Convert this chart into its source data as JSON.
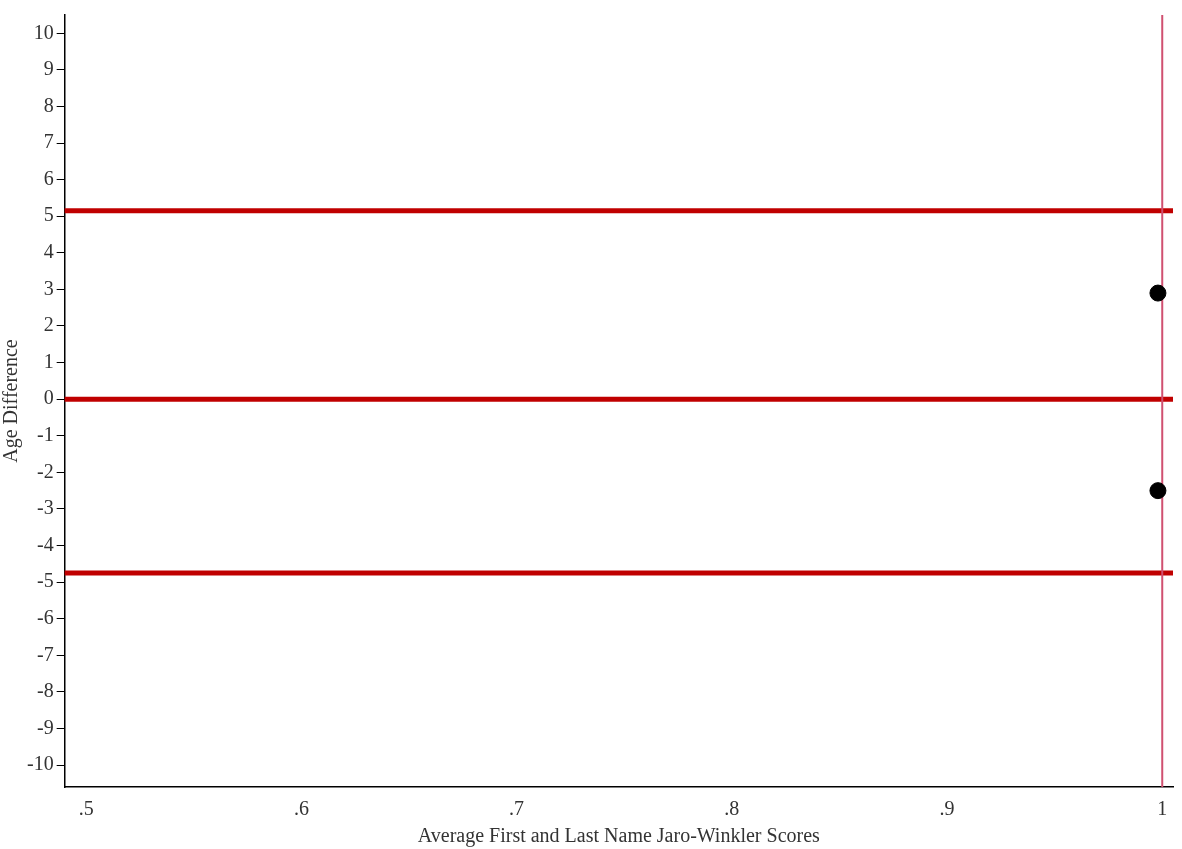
{
  "chart_data": {
    "type": "scatter",
    "xlabel": "Average First and Last Name Jaro-Winkler Scores",
    "ylabel": "Age Difference",
    "x": [
      0.998,
      0.998
    ],
    "values": [
      2.9,
      -2.5
    ],
    "color": "#000000",
    "marker": "circle",
    "xlim": [
      0.49,
      1.005
    ],
    "xticks": [
      {
        "value": 0.5,
        "label": ".5"
      },
      {
        "value": 0.6,
        "label": ".6"
      },
      {
        "value": 0.7,
        "label": ".7"
      },
      {
        "value": 0.8,
        "label": ".8"
      },
      {
        "value": 0.9,
        "label": ".9"
      },
      1
    ],
    "ylim": [
      -10.6,
      10.5
    ],
    "yticks": [
      -10,
      -9,
      -8,
      -7,
      -6,
      -5,
      -4,
      -3,
      -2,
      -1,
      0,
      1,
      2,
      3,
      4,
      5,
      6,
      7,
      8,
      9,
      10
    ],
    "ref_lines": [
      {
        "axis": "y",
        "value": 5.15,
        "color": "#c00000"
      },
      {
        "axis": "y",
        "value": 0,
        "color": "#c00000"
      },
      {
        "axis": "y",
        "value": -4.75,
        "color": "#c00000"
      },
      {
        "axis": "x",
        "value": 1,
        "color": "#d05070"
      }
    ],
    "grid": false,
    "legend": false
  }
}
